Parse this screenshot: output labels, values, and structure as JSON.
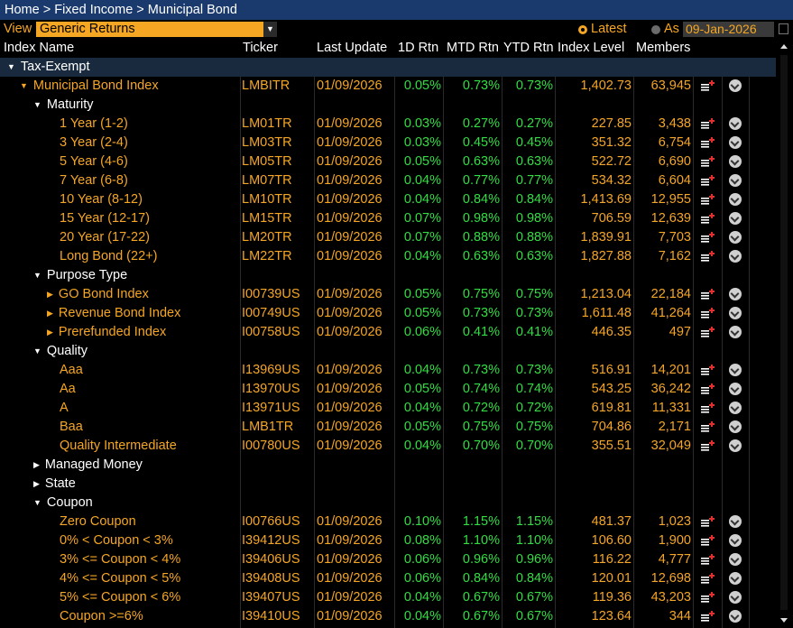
{
  "breadcrumb": {
    "home": "Home",
    "sep": " > ",
    "fixed_income": "Fixed Income",
    "municipal": "Municipal Bond"
  },
  "view": {
    "label": "View",
    "selected": "Generic Returns",
    "latest_label": "Latest",
    "asof_label": "As of",
    "asof_date": "09-Jan-2026"
  },
  "columns": {
    "name": "Index Name",
    "ticker": "Ticker",
    "last_update": "Last Update",
    "d1": "1D Rtn",
    "mtd": "MTD Rtn",
    "ytd": "YTD Rtn",
    "level": "Index Level",
    "members": "Members"
  },
  "colors": {
    "accent": "#f5a623",
    "positive": "#33dd44",
    "header_bar": "#1a3a6e",
    "selected_row": "#1a2a3e"
  },
  "rows": [
    {
      "t": "group",
      "indent": 0,
      "exp": "down",
      "name": "Tax-Exempt",
      "sel": true
    },
    {
      "t": "data",
      "indent": 1,
      "exp": "down",
      "name": "Municipal Bond Index",
      "ticker": "LMBITR",
      "date": "01/09/2026",
      "d1": "0.05%",
      "mtd": "0.73%",
      "ytd": "0.73%",
      "level": "1,402.73",
      "members": "63,945"
    },
    {
      "t": "group",
      "indent": 2,
      "exp": "down",
      "name": "Maturity"
    },
    {
      "t": "data",
      "indent": 3,
      "name": "1 Year (1-2)",
      "ticker": "LM01TR",
      "date": "01/09/2026",
      "d1": "0.03%",
      "mtd": "0.27%",
      "ytd": "0.27%",
      "level": "227.85",
      "members": "3,438"
    },
    {
      "t": "data",
      "indent": 3,
      "name": "3 Year (2-4)",
      "ticker": "LM03TR",
      "date": "01/09/2026",
      "d1": "0.03%",
      "mtd": "0.45%",
      "ytd": "0.45%",
      "level": "351.32",
      "members": "6,754"
    },
    {
      "t": "data",
      "indent": 3,
      "name": "5 Year (4-6)",
      "ticker": "LM05TR",
      "date": "01/09/2026",
      "d1": "0.05%",
      "mtd": "0.63%",
      "ytd": "0.63%",
      "level": "522.72",
      "members": "6,690"
    },
    {
      "t": "data",
      "indent": 3,
      "name": "7 Year (6-8)",
      "ticker": "LM07TR",
      "date": "01/09/2026",
      "d1": "0.04%",
      "mtd": "0.77%",
      "ytd": "0.77%",
      "level": "534.32",
      "members": "6,604"
    },
    {
      "t": "data",
      "indent": 3,
      "name": "10 Year (8-12)",
      "ticker": "LM10TR",
      "date": "01/09/2026",
      "d1": "0.04%",
      "mtd": "0.84%",
      "ytd": "0.84%",
      "level": "1,413.69",
      "members": "12,955"
    },
    {
      "t": "data",
      "indent": 3,
      "name": "15 Year (12-17)",
      "ticker": "LM15TR",
      "date": "01/09/2026",
      "d1": "0.07%",
      "mtd": "0.98%",
      "ytd": "0.98%",
      "level": "706.59",
      "members": "12,639"
    },
    {
      "t": "data",
      "indent": 3,
      "name": "20 Year (17-22)",
      "ticker": "LM20TR",
      "date": "01/09/2026",
      "d1": "0.07%",
      "mtd": "0.88%",
      "ytd": "0.88%",
      "level": "1,839.91",
      "members": "7,703"
    },
    {
      "t": "data",
      "indent": 3,
      "name": "Long Bond (22+)",
      "ticker": "LM22TR",
      "date": "01/09/2026",
      "d1": "0.04%",
      "mtd": "0.63%",
      "ytd": "0.63%",
      "level": "1,827.88",
      "members": "7,162"
    },
    {
      "t": "group",
      "indent": 2,
      "exp": "down",
      "name": "Purpose Type"
    },
    {
      "t": "data",
      "indent": 2.6,
      "exp": "right",
      "name": "GO Bond Index",
      "ticker": "I00739US",
      "date": "01/09/2026",
      "d1": "0.05%",
      "mtd": "0.75%",
      "ytd": "0.75%",
      "level": "1,213.04",
      "members": "22,184"
    },
    {
      "t": "data",
      "indent": 2.6,
      "exp": "right",
      "name": "Revenue Bond Index",
      "ticker": "I00749US",
      "date": "01/09/2026",
      "d1": "0.05%",
      "mtd": "0.73%",
      "ytd": "0.73%",
      "level": "1,611.48",
      "members": "41,264"
    },
    {
      "t": "data",
      "indent": 2.6,
      "exp": "right",
      "name": "Prerefunded Index",
      "ticker": "I00758US",
      "date": "01/09/2026",
      "d1": "0.06%",
      "mtd": "0.41%",
      "ytd": "0.41%",
      "level": "446.35",
      "members": "497"
    },
    {
      "t": "group",
      "indent": 2,
      "exp": "down",
      "name": "Quality"
    },
    {
      "t": "data",
      "indent": 3,
      "name": "Aaa",
      "ticker": "I13969US",
      "date": "01/09/2026",
      "d1": "0.04%",
      "mtd": "0.73%",
      "ytd": "0.73%",
      "level": "516.91",
      "members": "14,201"
    },
    {
      "t": "data",
      "indent": 3,
      "name": "Aa",
      "ticker": "I13970US",
      "date": "01/09/2026",
      "d1": "0.05%",
      "mtd": "0.74%",
      "ytd": "0.74%",
      "level": "543.25",
      "members": "36,242"
    },
    {
      "t": "data",
      "indent": 3,
      "name": "A",
      "ticker": "I13971US",
      "date": "01/09/2026",
      "d1": "0.04%",
      "mtd": "0.72%",
      "ytd": "0.72%",
      "level": "619.81",
      "members": "11,331"
    },
    {
      "t": "data",
      "indent": 3,
      "name": "Baa",
      "ticker": "LMB1TR",
      "date": "01/09/2026",
      "d1": "0.05%",
      "mtd": "0.75%",
      "ytd": "0.75%",
      "level": "704.86",
      "members": "2,171"
    },
    {
      "t": "data",
      "indent": 3,
      "name": "Quality Intermediate",
      "ticker": "I00780US",
      "date": "01/09/2026",
      "d1": "0.04%",
      "mtd": "0.70%",
      "ytd": "0.70%",
      "level": "355.51",
      "members": "32,049"
    },
    {
      "t": "group",
      "indent": 2,
      "exp": "right",
      "name": "Managed Money"
    },
    {
      "t": "group",
      "indent": 2,
      "exp": "right",
      "name": "State"
    },
    {
      "t": "group",
      "indent": 2,
      "exp": "down",
      "name": "Coupon"
    },
    {
      "t": "data",
      "indent": 3,
      "name": "Zero Coupon",
      "ticker": "I00766US",
      "date": "01/09/2026",
      "d1": "0.10%",
      "mtd": "1.15%",
      "ytd": "1.15%",
      "level": "481.37",
      "members": "1,023"
    },
    {
      "t": "data",
      "indent": 3,
      "name": "0% < Coupon < 3%",
      "ticker": "I39412US",
      "date": "01/09/2026",
      "d1": "0.08%",
      "mtd": "1.10%",
      "ytd": "1.10%",
      "level": "106.60",
      "members": "1,900"
    },
    {
      "t": "data",
      "indent": 3,
      "name": "3% <= Coupon < 4%",
      "ticker": "I39406US",
      "date": "01/09/2026",
      "d1": "0.06%",
      "mtd": "0.96%",
      "ytd": "0.96%",
      "level": "116.22",
      "members": "4,777"
    },
    {
      "t": "data",
      "indent": 3,
      "name": "4% <= Coupon < 5%",
      "ticker": "I39408US",
      "date": "01/09/2026",
      "d1": "0.06%",
      "mtd": "0.84%",
      "ytd": "0.84%",
      "level": "120.01",
      "members": "12,698"
    },
    {
      "t": "data",
      "indent": 3,
      "name": "5% <= Coupon < 6%",
      "ticker": "I39407US",
      "date": "01/09/2026",
      "d1": "0.04%",
      "mtd": "0.67%",
      "ytd": "0.67%",
      "level": "119.36",
      "members": "43,203"
    },
    {
      "t": "data",
      "indent": 3,
      "name": "Coupon >=6%",
      "ticker": "I39410US",
      "date": "01/09/2026",
      "d1": "0.04%",
      "mtd": "0.67%",
      "ytd": "0.67%",
      "level": "123.64",
      "members": "344"
    }
  ]
}
